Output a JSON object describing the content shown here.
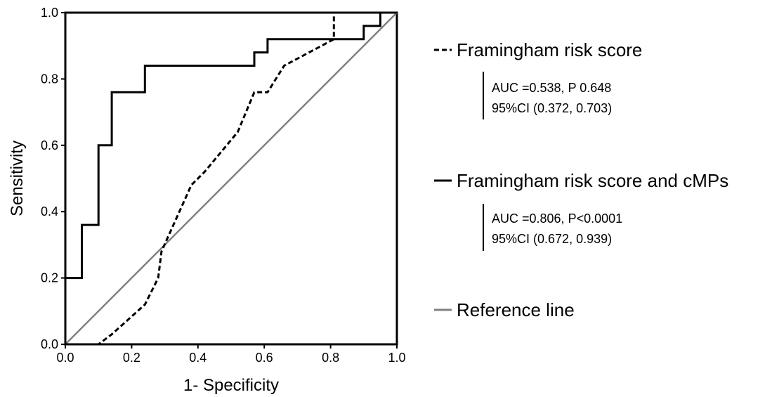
{
  "chart_data": {
    "type": "line",
    "title": "",
    "xlabel": "1- Specificity",
    "ylabel": "Sensitivity",
    "xlim": [
      0,
      1
    ],
    "ylim": [
      0,
      1
    ],
    "x_ticks": [
      "0.0",
      "0.2",
      "0.4",
      "0.6",
      "0.8",
      "1.0"
    ],
    "y_ticks": [
      "0.0",
      "0.2",
      "0.4",
      "0.6",
      "0.8",
      "1.0"
    ],
    "grid": false,
    "legend_position": "right",
    "series": [
      {
        "name": "Framingham risk score",
        "style": "dashed",
        "color": "#000000",
        "auc_text": "AUC =0.538, P 0.648",
        "ci_text": "95%CI (0.372, 0.703)",
        "points": [
          [
            0,
            0
          ],
          [
            0.1,
            0
          ],
          [
            0.14,
            0.03
          ],
          [
            0.24,
            0.12
          ],
          [
            0.28,
            0.2
          ],
          [
            0.29,
            0.28
          ],
          [
            0.38,
            0.48
          ],
          [
            0.42,
            0.52
          ],
          [
            0.52,
            0.64
          ],
          [
            0.57,
            0.76
          ],
          [
            0.61,
            0.76
          ],
          [
            0.66,
            0.84
          ],
          [
            0.81,
            0.92
          ],
          [
            0.81,
            1
          ],
          [
            0.95,
            1
          ],
          [
            1,
            1
          ]
        ]
      },
      {
        "name": "Framingham risk score and cMPs",
        "style": "solid",
        "color": "#000000",
        "auc_text": "AUC =0.806, P<0.0001",
        "ci_text": "95%CI (0.672, 0.939)",
        "points": [
          [
            0,
            0
          ],
          [
            0,
            0.2
          ],
          [
            0.05,
            0.2
          ],
          [
            0.05,
            0.36
          ],
          [
            0.1,
            0.36
          ],
          [
            0.1,
            0.6
          ],
          [
            0.14,
            0.6
          ],
          [
            0.14,
            0.76
          ],
          [
            0.24,
            0.76
          ],
          [
            0.24,
            0.84
          ],
          [
            0.57,
            0.84
          ],
          [
            0.57,
            0.88
          ],
          [
            0.61,
            0.88
          ],
          [
            0.61,
            0.92
          ],
          [
            0.9,
            0.92
          ],
          [
            0.9,
            0.96
          ],
          [
            0.95,
            0.96
          ],
          [
            0.95,
            1
          ],
          [
            1,
            1
          ]
        ]
      },
      {
        "name": "Reference line",
        "style": "solid",
        "color": "#808080",
        "points": [
          [
            0,
            0
          ],
          [
            1,
            1
          ]
        ]
      }
    ]
  }
}
